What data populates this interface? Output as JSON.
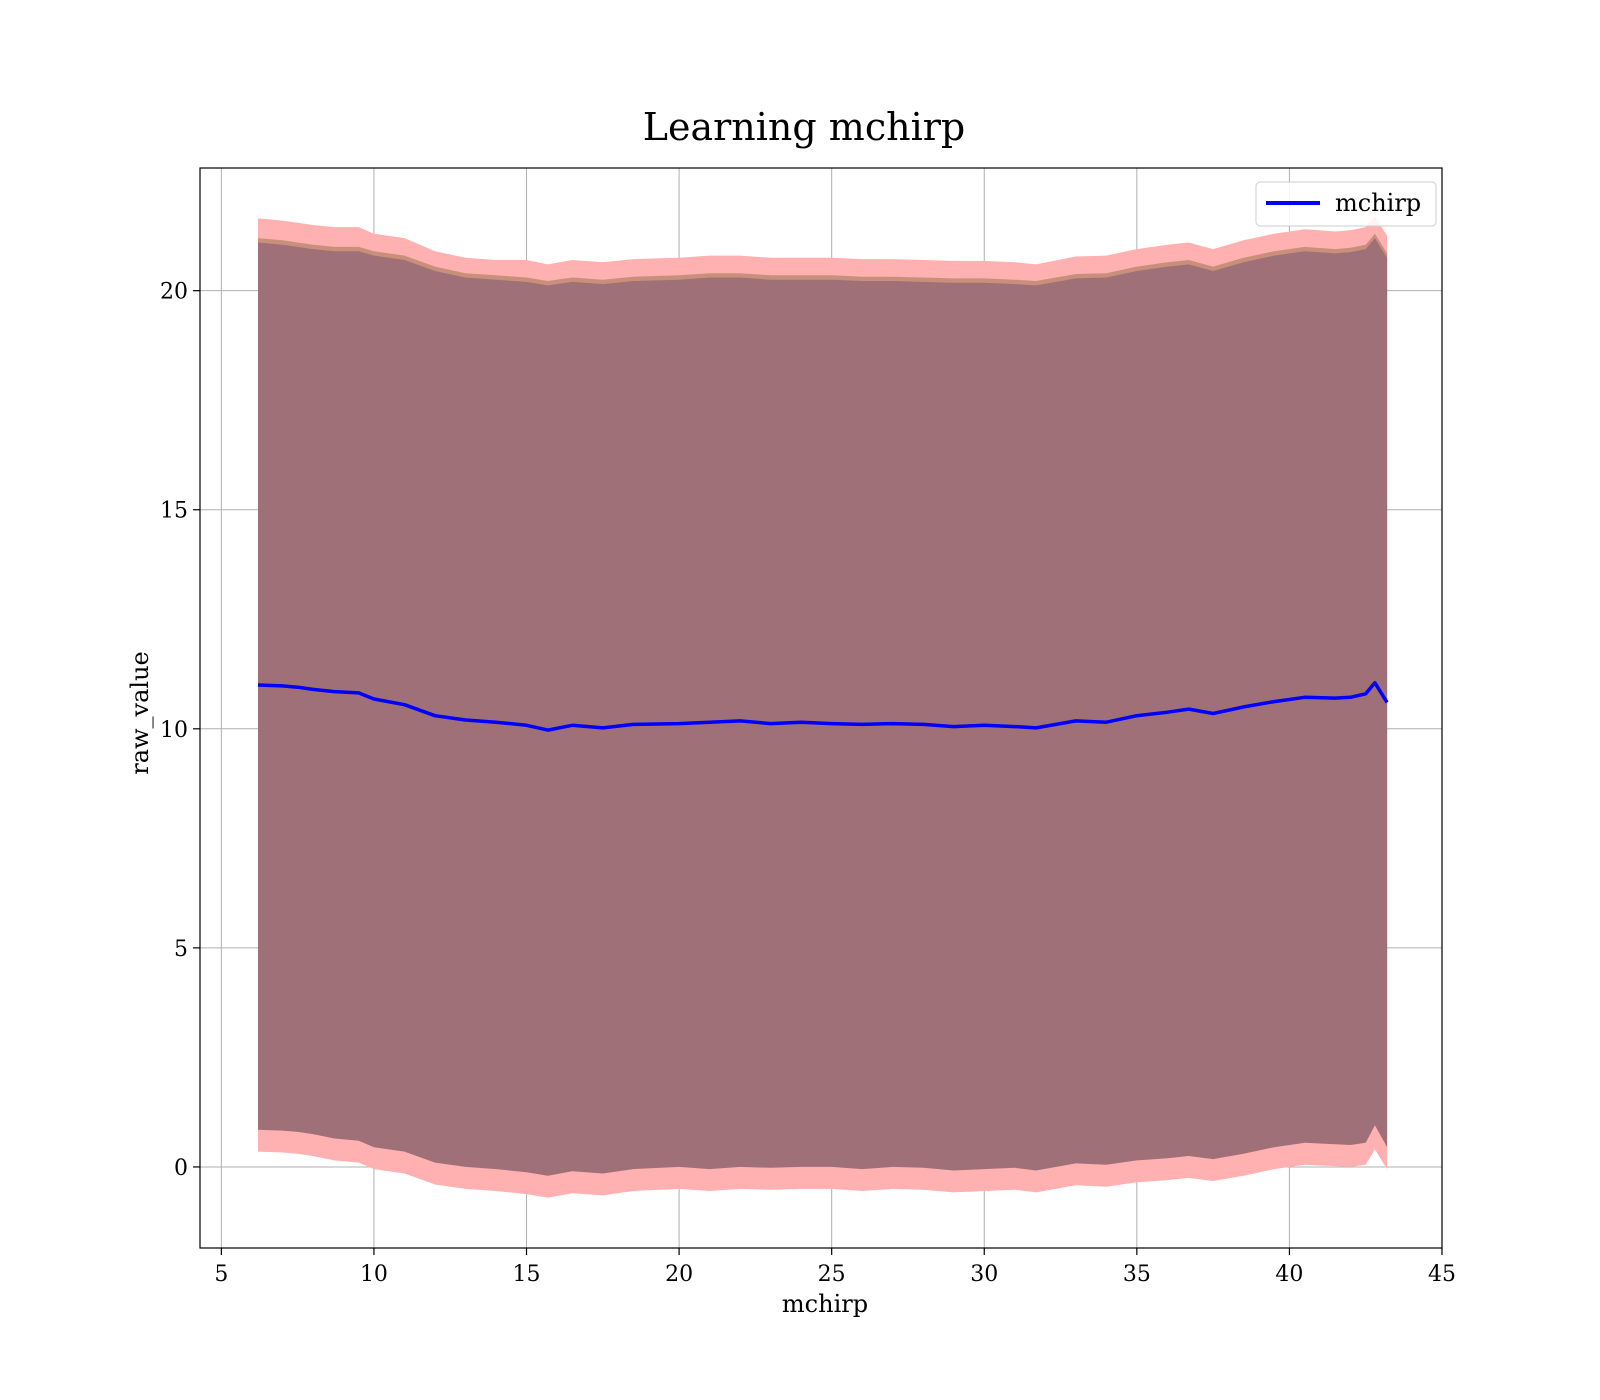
{
  "chart_data": {
    "type": "area",
    "title": "Learning mchirp",
    "xlabel": "mchirp",
    "ylabel": "raw_value",
    "xlim": [
      4.3,
      45
    ],
    "ylim": [
      -1.85,
      22.8
    ],
    "xticks": [
      5,
      10,
      15,
      20,
      25,
      30,
      35,
      40,
      45
    ],
    "yticks": [
      0,
      5,
      10,
      15,
      20
    ],
    "grid": true,
    "legend": {
      "placement": "top-right",
      "entries": [
        "mchirp"
      ]
    },
    "colors": {
      "line": "#0000ff",
      "outer_band": "#ffb0b0",
      "mid_band": "#c8907a",
      "inner_band": "#a07078"
    },
    "series": [
      {
        "name": "mchirp",
        "x": [
          6.2,
          7.0,
          7.5,
          8.0,
          8.7,
          9.5,
          10.0,
          11.0,
          12.0,
          13.0,
          14.0,
          15.0,
          15.7,
          16.5,
          17.5,
          18.5,
          20.0,
          21.0,
          22.0,
          23.0,
          24.0,
          25.0,
          26.0,
          27.0,
          28.0,
          29.0,
          30.0,
          31.0,
          31.7,
          33.0,
          34.0,
          35.0,
          36.0,
          36.7,
          37.5,
          38.5,
          39.5,
          40.5,
          41.5,
          42.0,
          42.5,
          42.8,
          43.2
        ],
        "mean": [
          11.0,
          10.98,
          10.95,
          10.9,
          10.85,
          10.82,
          10.68,
          10.55,
          10.3,
          10.2,
          10.15,
          10.08,
          9.97,
          10.08,
          10.02,
          10.1,
          10.12,
          10.15,
          10.18,
          10.12,
          10.15,
          10.12,
          10.1,
          10.12,
          10.1,
          10.05,
          10.08,
          10.05,
          10.02,
          10.18,
          10.15,
          10.3,
          10.38,
          10.45,
          10.35,
          10.5,
          10.62,
          10.72,
          10.7,
          10.72,
          10.8,
          11.05,
          10.6
        ],
        "outer_lower": [
          0.35,
          0.33,
          0.3,
          0.25,
          0.15,
          0.1,
          -0.05,
          -0.15,
          -0.4,
          -0.5,
          -0.55,
          -0.62,
          -0.7,
          -0.6,
          -0.65,
          -0.55,
          -0.5,
          -0.55,
          -0.5,
          -0.52,
          -0.5,
          -0.5,
          -0.55,
          -0.5,
          -0.52,
          -0.58,
          -0.55,
          -0.52,
          -0.58,
          -0.42,
          -0.45,
          -0.35,
          -0.3,
          -0.25,
          -0.32,
          -0.2,
          -0.05,
          0.05,
          0.02,
          0.0,
          0.05,
          0.4,
          -0.05
        ],
        "outer_upper": [
          21.65,
          21.6,
          21.55,
          21.5,
          21.45,
          21.45,
          21.3,
          21.2,
          20.9,
          20.75,
          20.7,
          20.7,
          20.6,
          20.7,
          20.65,
          20.72,
          20.75,
          20.8,
          20.8,
          20.75,
          20.75,
          20.75,
          20.72,
          20.72,
          20.7,
          20.68,
          20.68,
          20.65,
          20.6,
          20.78,
          20.8,
          20.95,
          21.05,
          21.1,
          20.95,
          21.15,
          21.3,
          21.4,
          21.35,
          21.38,
          21.45,
          21.7,
          21.25
        ],
        "inner_lower": [
          0.85,
          0.83,
          0.8,
          0.75,
          0.65,
          0.6,
          0.45,
          0.35,
          0.1,
          0.0,
          -0.05,
          -0.12,
          -0.2,
          -0.1,
          -0.15,
          -0.05,
          0.0,
          -0.05,
          0.0,
          -0.02,
          0.0,
          0.0,
          -0.05,
          0.0,
          -0.02,
          -0.08,
          -0.05,
          -0.02,
          -0.08,
          0.08,
          0.05,
          0.15,
          0.2,
          0.25,
          0.18,
          0.3,
          0.45,
          0.55,
          0.52,
          0.5,
          0.55,
          0.95,
          0.45
        ],
        "inner_upper": [
          21.1,
          21.05,
          21.0,
          20.95,
          20.9,
          20.9,
          20.8,
          20.7,
          20.45,
          20.3,
          20.25,
          20.2,
          20.12,
          20.2,
          20.15,
          20.22,
          20.25,
          20.3,
          20.3,
          20.25,
          20.25,
          20.25,
          20.22,
          20.22,
          20.2,
          20.18,
          20.18,
          20.15,
          20.12,
          20.28,
          20.3,
          20.45,
          20.55,
          20.6,
          20.45,
          20.65,
          20.8,
          20.9,
          20.85,
          20.88,
          20.95,
          21.2,
          20.75
        ]
      }
    ]
  }
}
